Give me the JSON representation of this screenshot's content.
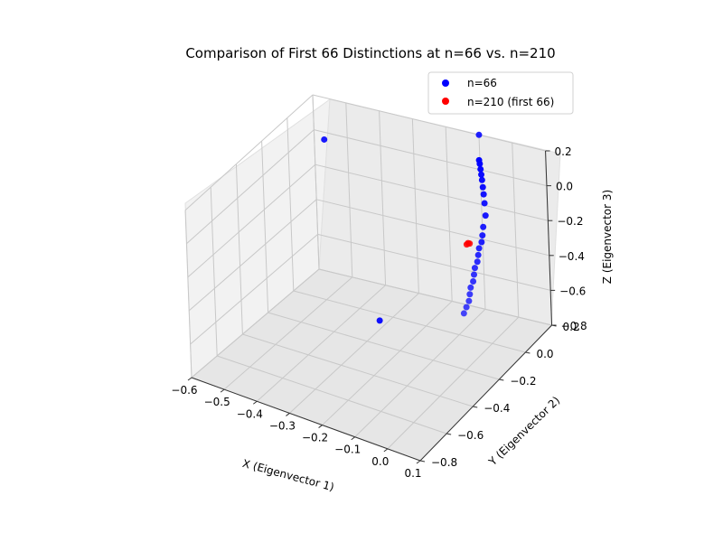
{
  "chart_data": {
    "type": "scatter3d",
    "title": "Comparison of First 66 Distinctions at n=66 vs. n=210",
    "xlabel": "X (Eigenvector 1)",
    "ylabel": "Y (Eigenvector 2)",
    "zlabel": "Z (Eigenvector 3)",
    "xlim": [
      -0.6,
      0.1
    ],
    "ylim": [
      -0.8,
      0.2
    ],
    "zlim": [
      -0.8,
      0.2
    ],
    "xticks": [
      "−0.6",
      "−0.5",
      "−0.4",
      "−0.3",
      "−0.2",
      "−0.1",
      "0.0",
      "0.1"
    ],
    "yticks": [
      "−0.8",
      "−0.6",
      "−0.4",
      "−0.2",
      "0.0",
      "0.2"
    ],
    "zticks": [
      "−0.8",
      "−0.6",
      "−0.4",
      "−0.2",
      "0.0",
      "0.2"
    ],
    "legend_position": "top-right",
    "grid": true,
    "series": [
      {
        "name": "n=66",
        "color": "#0000ff",
        "points": [
          {
            "x": -0.55,
            "y": 0.15,
            "z": 0.0
          },
          {
            "x": -0.3,
            "y": -0.1,
            "z": -0.75
          },
          {
            "x": -0.1,
            "y": 0.2,
            "z": 0.2
          },
          {
            "x": -0.02,
            "y": 0.0,
            "z": 0.25
          },
          {
            "x": -0.01,
            "y": -0.02,
            "z": 0.25
          },
          {
            "x": 0.0,
            "y": -0.04,
            "z": 0.24
          },
          {
            "x": 0.01,
            "y": -0.06,
            "z": 0.23
          },
          {
            "x": 0.02,
            "y": -0.08,
            "z": 0.22
          },
          {
            "x": 0.03,
            "y": -0.1,
            "z": 0.2
          },
          {
            "x": 0.04,
            "y": -0.12,
            "z": 0.18
          },
          {
            "x": 0.05,
            "y": -0.14,
            "z": 0.15
          },
          {
            "x": 0.06,
            "y": -0.16,
            "z": 0.1
          },
          {
            "x": 0.06,
            "y": -0.18,
            "z": 0.05
          },
          {
            "x": 0.065,
            "y": -0.2,
            "z": 0.02
          },
          {
            "x": 0.07,
            "y": -0.22,
            "z": 0.0
          },
          {
            "x": 0.07,
            "y": -0.24,
            "z": -0.02
          },
          {
            "x": 0.075,
            "y": -0.26,
            "z": -0.04
          },
          {
            "x": 0.08,
            "y": -0.28,
            "z": -0.06
          },
          {
            "x": 0.08,
            "y": -0.3,
            "z": -0.08
          },
          {
            "x": 0.085,
            "y": -0.32,
            "z": -0.1
          },
          {
            "x": 0.09,
            "y": -0.34,
            "z": -0.12
          },
          {
            "x": 0.09,
            "y": -0.36,
            "z": -0.14
          },
          {
            "x": 0.095,
            "y": -0.38,
            "z": -0.16
          },
          {
            "x": 0.1,
            "y": -0.4,
            "z": -0.18
          },
          {
            "x": 0.1,
            "y": -0.42,
            "z": -0.2
          },
          {
            "x": 0.1,
            "y": -0.44,
            "z": -0.22
          }
        ]
      },
      {
        "name": "n=210 (first 66)",
        "color": "#ff0000",
        "points": [
          {
            "x": 0.02,
            "y": -0.2,
            "z": -0.05
          },
          {
            "x": 0.025,
            "y": -0.2,
            "z": -0.05
          },
          {
            "x": 0.02,
            "y": -0.21,
            "z": -0.05
          }
        ]
      }
    ]
  }
}
